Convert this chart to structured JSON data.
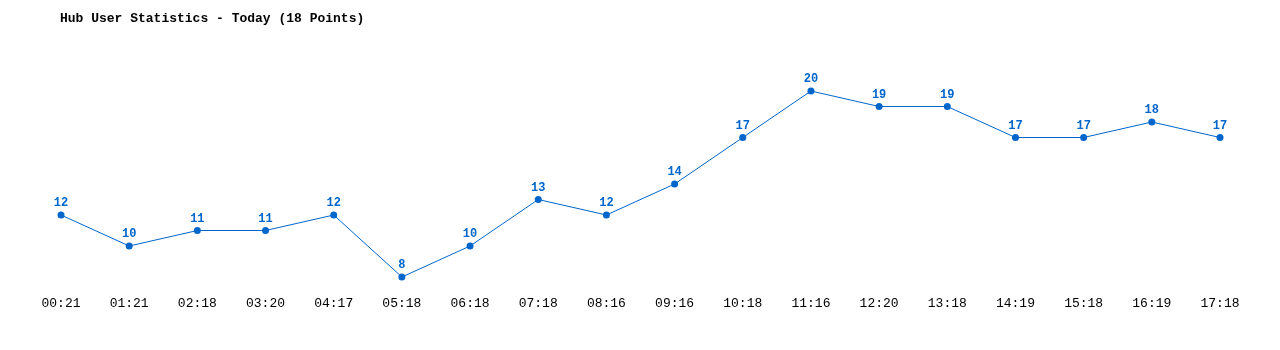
{
  "chart_data": {
    "type": "line",
    "title": "Hub User Statistics - Today (18 Points)",
    "categories": [
      "00:21",
      "01:21",
      "02:18",
      "03:20",
      "04:17",
      "05:18",
      "06:18",
      "07:18",
      "08:16",
      "09:16",
      "10:18",
      "11:16",
      "12:20",
      "13:18",
      "14:19",
      "15:18",
      "16:19",
      "17:18"
    ],
    "series": [
      {
        "color": "#0066cc",
        "values": [
          12,
          10,
          11,
          11,
          12,
          8,
          10,
          13,
          12,
          14,
          17,
          20,
          19,
          19,
          17,
          17,
          18,
          17
        ]
      }
    ],
    "data_labels": true,
    "marker": "circle",
    "line_style": "solid"
  }
}
